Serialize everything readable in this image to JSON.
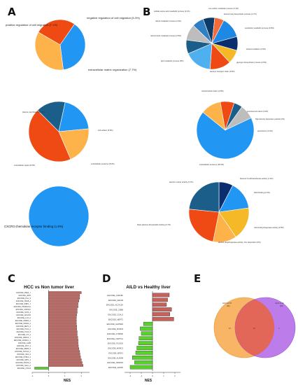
{
  "panels": {
    "a": "A",
    "b": "B",
    "c": "C",
    "d": "D",
    "e": "E"
  },
  "colors": {
    "orange_red": "#f04a14",
    "light_orange": "#fdb34a",
    "blue": "#2196f3",
    "light_blue": "#4fb0f0",
    "dark_blue": "#0d3b66",
    "navy": "#0b2e6e",
    "teal": "#1b5e8a",
    "grey": "#bdbdbd",
    "yellow": "#f5b928",
    "red_bar": "#c8615a",
    "green_bar": "#59d12c",
    "venn_left": "#f7a84a",
    "venn_right": "#b066e8"
  },
  "chart_data": [
    {
      "id": "A1",
      "type": "pie",
      "labels": [
        "negative regulation of cell migration (5.3%)",
        "extracellular matrix organization (7.7%)",
        "positive regulation of cell migration (7.1%)"
      ],
      "values": [
        5.3,
        7.7,
        7.1
      ],
      "colors": [
        "#f04a14",
        "#2196f3",
        "#fdb34a"
      ]
    },
    {
      "id": "A2",
      "type": "pie",
      "labels": [
        "cell surface (6.6%)",
        "extracellular exosome (8.3%)",
        "extracellular space (8.3%)",
        "plasma membrane (18.2%)"
      ],
      "values": [
        6.6,
        8.3,
        8.3,
        18.2
      ],
      "colors": [
        "#1b5e8a",
        "#2196f3",
        "#fdb34a",
        "#f04a14"
      ]
    },
    {
      "id": "A3",
      "type": "pie",
      "labels": [
        "CXCR3 chemokine receptor binding (1.9%)"
      ],
      "values": [
        1.9
      ],
      "colors": [
        "#2196f3"
      ]
    },
    {
      "id": "B1",
      "type": "pie",
      "labels": [
        "one-carbon metabolic process (2.1%)",
        "ketone body biosynthetic process (1.7%)",
        "xenobiotic metabolic process (3.8%)",
        "ethanol oxidation (2.5%)",
        "glycogen biosynthetic process (2.5%)",
        "electron transport chain (3.8%)",
        "lipid metabolic process (5%)",
        "retinoid acid metabolic process (2.5%)",
        "retinol metabolic process (2.9%)",
        "cellular amino acid metabolic process (2.1%)"
      ],
      "values": [
        2.1,
        1.7,
        3.8,
        2.5,
        2.5,
        3.8,
        5.0,
        2.5,
        2.9,
        2.1
      ],
      "colors": [
        "#0d3b66",
        "#f26b3a",
        "#1e88e5",
        "#0b2e6e",
        "#f5b928",
        "#f04a14",
        "#4fb0f0",
        "#1b5e8a",
        "#bdbdbd",
        "#2f7fc1"
      ]
    },
    {
      "id": "B2",
      "type": "pie",
      "labels": [
        "peroxisomal matrix (3.3%)",
        "high-density lipoprotein particle (2%)",
        "peroxisome (3.4%)",
        "extracellular exosome (28.4%)",
        "mitochondrial matrix (4.8%)"
      ],
      "values": [
        3.3,
        2.0,
        3.4,
        28.4,
        4.8
      ],
      "colors": [
        "#f04a14",
        "#1b5e8a",
        "#bdbdbd",
        "#2196f3",
        "#fdb34a"
      ]
    },
    {
      "id": "B3",
      "type": "pie",
      "labels": [
        "flavonol 3-sulfotransferase activity (1.2%)",
        "NAD binding (2.4%)",
        "retinol dehydrogenase activity (2.8%)",
        "alcohol dehydrogenase activity, zinc-dependent (2%)",
        "flavin adenine dinucleotide binding (3.7%)",
        "electron carrier activity (3.7%)"
      ],
      "values": [
        1.2,
        2.4,
        2.8,
        2.0,
        3.7,
        3.7
      ],
      "colors": [
        "#0b2e6e",
        "#2196f3",
        "#f5b928",
        "#fdb34a",
        "#f04a14",
        "#1b5e8a"
      ]
    },
    {
      "id": "C",
      "type": "bar",
      "orientation": "horizontal",
      "title": "HCC vs Non tumor liver",
      "xlabel": "NES",
      "xlim": [
        -1,
        2.5
      ],
      "categories": [
        "ENCODE_PSEA_7",
        "ENCODE_JDP2",
        "ENCODE_PLG_S",
        "ENCODE_CRAB_2",
        "ENCODE_WBP1_T",
        "ENCODE_PPARGC1A",
        "ENCODE_CDKN1C",
        "ENCODE_SUFA_2",
        "ENCODE_AKAP10",
        "ENCODE_LOX_A",
        "ENCODE_NR0B2_A",
        "ENCODE_PPARA_2",
        "ENCODE_RETN_3",
        "ENCODE_PLS1_A",
        "ENCODE_TAUA_5",
        "ENCODE_KIT_A",
        "ENCODE_MARCK_7",
        "ENCODE_CDKN1C_2",
        "ENCODE_LGR5",
        "ENCODE_ATF7_2",
        "ENCODE_MMP9_3",
        "ENCODE_SOCS3_A",
        "ENCODE_IGF2_6",
        "ENCODE_MYBL2_2",
        "ENCODE_SPP1_2",
        "ENCODE_PDLIM_2",
        "ENCODE_SAAL_A",
        "ENCODE_CXCL8"
      ],
      "values": [
        2.0,
        1.9,
        1.9,
        1.85,
        1.8,
        1.8,
        1.75,
        1.75,
        1.72,
        1.7,
        1.7,
        1.7,
        1.72,
        1.72,
        1.75,
        1.75,
        1.78,
        1.8,
        1.8,
        1.82,
        1.85,
        1.9,
        1.92,
        1.95,
        2.0,
        2.05,
        2.1,
        -0.85
      ]
    },
    {
      "id": "D",
      "type": "bar",
      "orientation": "horizontal",
      "title": "AILD vs Healthy liver",
      "xlabel": "NES",
      "xlim": [
        -2.5,
        2.5
      ],
      "categories": [
        "ENCODE_CHKLBF",
        "ENCODE_MAF1B",
        "ENCODE_ALOX12A",
        "ENCODE_CSBB",
        "ENCODE_CCALG",
        "ENCODE_MEPT2",
        "ENCODE_GHPFER",
        "ENCODE_MCM33",
        "ENCODE_KTN6MF",
        "ENCODE_NSPTCA",
        "ENCODE_PLS3C6",
        "ENCODE_MARC3",
        "ENCODE_NR3F1",
        "ENCODE_ALKMM",
        "ENCODE_NRSPF6",
        "ENCODE_AHR3F"
      ],
      "values": [
        1.5,
        1.35,
        1.25,
        1.7,
        1.55,
        1.9,
        -0.8,
        -1.1,
        -1.0,
        -1.2,
        -1.25,
        -1.4,
        -1.5,
        -1.8,
        -1.6,
        -2.0
      ]
    },
    {
      "id": "E",
      "type": "venn",
      "sets": [
        {
          "name": "HCC vs NT",
          "count_label": "(30)",
          "only": 14,
          "color": "#f7a84a"
        },
        {
          "name": "AILD vs HL",
          "count_label": "(18)",
          "only": 2,
          "color": "#b066e8"
        }
      ],
      "intersection": 16
    }
  ]
}
